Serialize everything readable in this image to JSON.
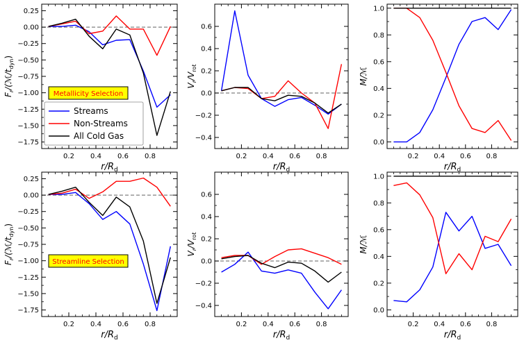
{
  "figure": {
    "row_titles": [
      "Metallicity Selection",
      "Streamline Selection"
    ],
    "legend": [
      {
        "label": "Streams",
        "color": "#0000ff"
      },
      {
        "label": "Non-Streams",
        "color": "#ff0000"
      },
      {
        "label": "All Cold Gas",
        "color": "#000000"
      }
    ],
    "colors": {
      "streams": "#0000ff",
      "non_streams": "#ff0000",
      "all": "#000000",
      "zero_line": "#808080",
      "badge_fill": "#ffff00",
      "badge_text": "#ff0000"
    }
  },
  "chart_data": [
    {
      "id": "flux-metallicity",
      "type": "line",
      "row": 0,
      "col": 0,
      "ylabel_main": "F",
      "ylabel_tail": "/(ℳ/t",
      "ylabel_sub1": "r",
      "ylabel_sub2": "dyn",
      "ylabel_end": ")",
      "xlabel": "r/R",
      "xlabel_sub": "d",
      "xlim": [
        0,
        1
      ],
      "ylim": [
        -1.85,
        0.35
      ],
      "xticks": [
        0.2,
        0.4,
        0.6,
        0.8
      ],
      "xtick_labels": [
        "0.2",
        "0.4",
        "0.6",
        "0.8"
      ],
      "yticks": [
        0.25,
        0,
        -0.25,
        -0.5,
        -0.75,
        -1.0,
        -1.25,
        -1.5,
        -1.75
      ],
      "ytick_labels": [
        "0.25",
        "0.00",
        "−0.25",
        "−0.50",
        "−0.75",
        "−1.00",
        "−1.25",
        "−1.50",
        "−1.75"
      ],
      "zero_line": 0,
      "x": [
        0.05,
        0.15,
        0.25,
        0.35,
        0.45,
        0.55,
        0.65,
        0.75,
        0.85,
        0.95
      ],
      "series": [
        {
          "name": "Streams",
          "key": "streams",
          "values": [
            0.01,
            0.01,
            0.03,
            -0.07,
            -0.27,
            -0.2,
            -0.19,
            -0.67,
            -1.22,
            -1.03
          ]
        },
        {
          "name": "Non-Streams",
          "key": "non_streams",
          "values": [
            0.01,
            0.05,
            0.09,
            -0.1,
            -0.06,
            0.17,
            -0.03,
            -0.03,
            -0.43,
            0.01
          ]
        },
        {
          "name": "All Cold Gas",
          "key": "all",
          "values": [
            0.01,
            0.06,
            0.12,
            -0.14,
            -0.33,
            -0.03,
            -0.12,
            -0.7,
            -1.65,
            -0.98
          ]
        }
      ]
    },
    {
      "id": "vel-metallicity",
      "type": "line",
      "row": 0,
      "col": 1,
      "ylabel_main": "V",
      "ylabel_sub1": "r",
      "ylabel_tail": "/V",
      "ylabel_sub2": "rot",
      "ylabel_end": "",
      "xlabel": "r/R",
      "xlabel_sub": "d",
      "xlim": [
        0,
        1
      ],
      "ylim": [
        -0.5,
        0.8
      ],
      "xticks": [
        0.2,
        0.4,
        0.6,
        0.8
      ],
      "xtick_labels": [
        "0.2",
        "0.4",
        "0.6",
        "0.8"
      ],
      "yticks": [
        0.6,
        0.4,
        0.2,
        0.0,
        -0.2,
        -0.4
      ],
      "ytick_labels": [
        "0.6",
        "0.4",
        "0.2",
        "0.0",
        "−0.2",
        "−0.4"
      ],
      "zero_line": 0,
      "x": [
        0.05,
        0.15,
        0.25,
        0.35,
        0.45,
        0.55,
        0.65,
        0.75,
        0.85,
        0.95
      ],
      "series": [
        {
          "name": "Streams",
          "key": "streams",
          "values": [
            0.02,
            0.74,
            0.16,
            -0.05,
            -0.12,
            -0.06,
            -0.04,
            -0.11,
            -0.19,
            -0.1
          ]
        },
        {
          "name": "Non-Streams",
          "key": "non_streams",
          "values": [
            0.02,
            0.05,
            0.04,
            -0.05,
            -0.03,
            0.11,
            0.0,
            -0.09,
            -0.32,
            0.26
          ]
        },
        {
          "name": "All Cold Gas",
          "key": "all",
          "values": [
            0.02,
            0.05,
            0.05,
            -0.05,
            -0.07,
            -0.02,
            -0.03,
            -0.09,
            -0.18,
            -0.1
          ]
        }
      ]
    },
    {
      "id": "mass-metallicity",
      "type": "line",
      "row": 0,
      "col": 2,
      "ylabel_main": "M",
      "ylabel_sub1": "",
      "ylabel_tail": "/ℳ",
      "ylabel_sub2": "",
      "ylabel_end": "",
      "xlabel": "r/R",
      "xlabel_sub": "d",
      "xlim": [
        0,
        1
      ],
      "ylim": [
        -0.05,
        1.03
      ],
      "xticks": [
        0.2,
        0.4,
        0.6,
        0.8
      ],
      "xtick_labels": [
        "0.2",
        "0.4",
        "0.6",
        "0.8"
      ],
      "yticks": [
        0.0,
        0.2,
        0.4,
        0.6,
        0.8,
        1.0
      ],
      "ytick_labels": [
        "0.0",
        "0.2",
        "0.4",
        "0.6",
        "0.8",
        "1.0"
      ],
      "zero_line": null,
      "x": [
        0.05,
        0.15,
        0.25,
        0.35,
        0.45,
        0.55,
        0.65,
        0.75,
        0.85,
        0.95
      ],
      "series": [
        {
          "name": "Streams",
          "key": "streams",
          "values": [
            0.0,
            0.0,
            0.07,
            0.24,
            0.48,
            0.73,
            0.9,
            0.93,
            0.84,
            0.99
          ]
        },
        {
          "name": "Non-Streams",
          "key": "non_streams",
          "values": [
            1.0,
            1.0,
            0.93,
            0.76,
            0.52,
            0.27,
            0.1,
            0.07,
            0.16,
            0.01
          ]
        },
        {
          "name": "All Cold Gas",
          "key": "all",
          "values": [
            1.0,
            1.0,
            1.0,
            1.0,
            1.0,
            1.0,
            1.0,
            1.0,
            1.0,
            1.0
          ]
        }
      ]
    },
    {
      "id": "flux-streamline",
      "type": "line",
      "row": 1,
      "col": 0,
      "ylabel_main": "F",
      "ylabel_tail": "/(ℳ/t",
      "ylabel_sub1": "r",
      "ylabel_sub2": "dyn",
      "ylabel_end": ")",
      "xlabel": "r/R",
      "xlabel_sub": "d",
      "xlim": [
        0,
        1
      ],
      "ylim": [
        -1.85,
        0.35
      ],
      "xticks": [
        0.2,
        0.4,
        0.6,
        0.8
      ],
      "xtick_labels": [
        "0.2",
        "0.4",
        "0.6",
        "0.8"
      ],
      "yticks": [
        0.25,
        0,
        -0.25,
        -0.5,
        -0.75,
        -1.0,
        -1.25,
        -1.5,
        -1.75
      ],
      "ytick_labels": [
        "0.25",
        "0.00",
        "−0.25",
        "−0.50",
        "−0.75",
        "−1.00",
        "−1.25",
        "−1.50",
        "−1.75"
      ],
      "zero_line": 0,
      "x": [
        0.05,
        0.15,
        0.25,
        0.35,
        0.45,
        0.55,
        0.65,
        0.75,
        0.85,
        0.95
      ],
      "series": [
        {
          "name": "Streams",
          "key": "streams",
          "values": [
            0.01,
            0.01,
            0.04,
            -0.13,
            -0.37,
            -0.25,
            -0.44,
            -1.05,
            -1.76,
            -0.78
          ]
        },
        {
          "name": "Non-Streams",
          "key": "non_streams",
          "values": [
            0.01,
            0.03,
            0.09,
            -0.05,
            0.05,
            0.21,
            0.21,
            0.26,
            0.12,
            -0.17
          ]
        },
        {
          "name": "All Cold Gas",
          "key": "all",
          "values": [
            0.01,
            0.06,
            0.12,
            -0.11,
            -0.31,
            -0.03,
            -0.18,
            -0.7,
            -1.65,
            -0.95
          ]
        }
      ]
    },
    {
      "id": "vel-streamline",
      "type": "line",
      "row": 1,
      "col": 1,
      "ylabel_main": "V",
      "ylabel_sub1": "r",
      "ylabel_tail": "/V",
      "ylabel_sub2": "rot",
      "ylabel_end": "",
      "xlabel": "r/R",
      "xlabel_sub": "d",
      "xlim": [
        0,
        1
      ],
      "ylim": [
        -0.5,
        0.8
      ],
      "xticks": [
        0.2,
        0.4,
        0.6,
        0.8
      ],
      "xtick_labels": [
        "0.2",
        "0.4",
        "0.6",
        "0.8"
      ],
      "yticks": [
        0.6,
        0.4,
        0.2,
        0.0,
        -0.2,
        -0.4
      ],
      "ytick_labels": [
        "0.6",
        "0.4",
        "0.2",
        "0.0",
        "−0.2",
        "−0.4"
      ],
      "zero_line": 0,
      "x": [
        0.05,
        0.15,
        0.25,
        0.35,
        0.45,
        0.55,
        0.65,
        0.75,
        0.85,
        0.95
      ],
      "series": [
        {
          "name": "Streams",
          "key": "streams",
          "values": [
            -0.1,
            -0.03,
            0.08,
            -0.09,
            -0.11,
            -0.08,
            -0.11,
            -0.28,
            -0.43,
            -0.26
          ]
        },
        {
          "name": "Non-Streams",
          "key": "non_streams",
          "values": [
            0.03,
            0.05,
            0.05,
            -0.03,
            0.04,
            0.1,
            0.11,
            0.07,
            0.03,
            -0.03
          ]
        },
        {
          "name": "All Cold Gas",
          "key": "all",
          "values": [
            0.02,
            0.04,
            0.05,
            -0.02,
            -0.06,
            -0.01,
            -0.02,
            -0.09,
            -0.19,
            -0.1
          ]
        }
      ]
    },
    {
      "id": "mass-streamline",
      "type": "line",
      "row": 1,
      "col": 2,
      "ylabel_main": "M",
      "ylabel_sub1": "",
      "ylabel_tail": "/ℳ",
      "ylabel_sub2": "",
      "ylabel_end": "",
      "xlabel": "r/R",
      "xlabel_sub": "d",
      "xlim": [
        0,
        1
      ],
      "ylim": [
        -0.05,
        1.03
      ],
      "xticks": [
        0.2,
        0.4,
        0.6,
        0.8
      ],
      "xtick_labels": [
        "0.2",
        "0.4",
        "0.6",
        "0.8"
      ],
      "yticks": [
        0.0,
        0.2,
        0.4,
        0.6,
        0.8,
        1.0
      ],
      "ytick_labels": [
        "0.0",
        "0.2",
        "0.4",
        "0.6",
        "0.8",
        "1.0"
      ],
      "zero_line": null,
      "x": [
        0.05,
        0.15,
        0.25,
        0.35,
        0.45,
        0.55,
        0.65,
        0.75,
        0.85,
        0.95
      ],
      "series": [
        {
          "name": "Streams",
          "key": "streams",
          "values": [
            0.07,
            0.06,
            0.15,
            0.32,
            0.73,
            0.59,
            0.7,
            0.46,
            0.49,
            0.33
          ]
        },
        {
          "name": "Non-Streams",
          "key": "non_streams",
          "values": [
            0.93,
            0.95,
            0.86,
            0.69,
            0.27,
            0.42,
            0.3,
            0.55,
            0.51,
            0.68
          ]
        },
        {
          "name": "All Cold Gas",
          "key": "all",
          "values": [
            1.0,
            1.0,
            1.0,
            1.0,
            1.0,
            1.0,
            1.0,
            1.0,
            1.0,
            1.0
          ]
        }
      ]
    }
  ]
}
